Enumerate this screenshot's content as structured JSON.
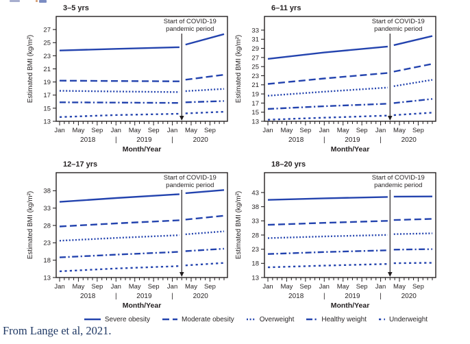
{
  "page": {
    "caption": "From Lange et al, 2021.",
    "caption_color": "#1f3864"
  },
  "colors": {
    "line": "#2343ae",
    "axis": "#231f20",
    "text": "#231f20"
  },
  "legend": {
    "items": [
      {
        "label": "Severe obesity",
        "style": "solid"
      },
      {
        "label": "Moderate obesity",
        "style": "dashed"
      },
      {
        "label": "Overweight",
        "style": "dotted"
      },
      {
        "label": "Healthy weight",
        "style": "dashdot"
      },
      {
        "label": "Underweight",
        "style": "shortdash"
      }
    ]
  },
  "axis_shared": {
    "xlabel": "Month/Year",
    "ylabel": "Estimated BMI (kg/m²)",
    "month_labels": [
      "Jan",
      "May",
      "Sep",
      "Jan",
      "May",
      "Sep",
      "Jan",
      "May",
      "Sep"
    ],
    "years": [
      "2018",
      "2019",
      "2020"
    ],
    "year_separator": "|",
    "annotation": [
      "Start of COVID-19",
      "pandemic period"
    ],
    "annotation_month": 26
  },
  "chart_data": [
    {
      "type": "line",
      "title": "3–5 yrs",
      "ylim": [
        13,
        29
      ],
      "yticks": [
        13,
        15,
        17,
        19,
        21,
        23,
        25,
        27
      ],
      "x_range": "Jan 2018 – Dec 2020, monthly ticks, break at start of COVID-19 pandemic period (early 2020)",
      "series": [
        {
          "name": "Severe obesity",
          "style": "solid",
          "pre": {
            "x": [
              0,
              12,
              25.5
            ],
            "y": [
              23.8,
              24.05,
              24.3
            ]
          },
          "post": {
            "x": [
              26.8,
              35
            ],
            "y": [
              24.7,
              26.3
            ]
          }
        },
        {
          "name": "Moderate obesity",
          "style": "dashed",
          "pre": {
            "x": [
              0,
              12,
              25.5
            ],
            "y": [
              19.2,
              19.15,
              19.1
            ]
          },
          "post": {
            "x": [
              26.8,
              35
            ],
            "y": [
              19.35,
              20.1
            ]
          }
        },
        {
          "name": "Overweight",
          "style": "dotted",
          "pre": {
            "x": [
              0,
              12,
              25.5
            ],
            "y": [
              17.65,
              17.55,
              17.45
            ]
          },
          "post": {
            "x": [
              26.8,
              35
            ],
            "y": [
              17.6,
              17.95
            ]
          }
        },
        {
          "name": "Healthy weight",
          "style": "dashdot",
          "pre": {
            "x": [
              0,
              12,
              25.5
            ],
            "y": [
              15.9,
              15.85,
              15.8
            ]
          },
          "post": {
            "x": [
              26.8,
              35
            ],
            "y": [
              15.9,
              16.1
            ]
          }
        },
        {
          "name": "Underweight",
          "style": "shortdash",
          "pre": {
            "x": [
              0,
              12,
              25.5
            ],
            "y": [
              13.65,
              13.95,
              14.15
            ]
          },
          "post": {
            "x": [
              26.8,
              35
            ],
            "y": [
              14.2,
              14.45
            ]
          }
        }
      ]
    },
    {
      "type": "line",
      "title": "6–11 yrs",
      "ylim": [
        13,
        36
      ],
      "yticks": [
        13,
        15,
        17,
        19,
        21,
        23,
        25,
        27,
        29,
        31,
        33
      ],
      "x_range": "Jan 2018 – Dec 2020, monthly ticks, break at start of COVID-19 pandemic period (early 2020)",
      "series": [
        {
          "name": "Severe obesity",
          "style": "solid",
          "pre": {
            "x": [
              0,
              12,
              25.5
            ],
            "y": [
              26.7,
              28.1,
              29.4
            ]
          },
          "post": {
            "x": [
              26.8,
              35
            ],
            "y": [
              29.7,
              31.7
            ]
          }
        },
        {
          "name": "Moderate obesity",
          "style": "dashed",
          "pre": {
            "x": [
              0,
              12,
              25.5
            ],
            "y": [
              21.2,
              22.4,
              23.6
            ]
          },
          "post": {
            "x": [
              26.8,
              35
            ],
            "y": [
              23.9,
              25.6
            ]
          }
        },
        {
          "name": "Overweight",
          "style": "dotted",
          "pre": {
            "x": [
              0,
              12,
              25.5
            ],
            "y": [
              18.6,
              19.5,
              20.4
            ]
          },
          "post": {
            "x": [
              26.8,
              35
            ],
            "y": [
              20.7,
              22.1
            ]
          }
        },
        {
          "name": "Healthy weight",
          "style": "dashdot",
          "pre": {
            "x": [
              0,
              12,
              25.5
            ],
            "y": [
              15.7,
              16.3,
              16.85
            ]
          },
          "post": {
            "x": [
              26.8,
              35
            ],
            "y": [
              17.0,
              17.9
            ]
          }
        },
        {
          "name": "Underweight",
          "style": "shortdash",
          "pre": {
            "x": [
              0,
              12,
              25.5
            ],
            "y": [
              13.35,
              13.8,
              14.25
            ]
          },
          "post": {
            "x": [
              26.8,
              35
            ],
            "y": [
              14.35,
              14.9
            ]
          }
        }
      ]
    },
    {
      "type": "line",
      "title": "12–17 yrs",
      "ylim": [
        13,
        43.2
      ],
      "yticks": [
        13,
        18,
        23,
        28,
        33,
        38
      ],
      "x_range": "Jan 2018 – Dec 2020, monthly ticks, break at start of COVID-19 pandemic period (early 2020)",
      "series": [
        {
          "name": "Severe obesity",
          "style": "solid",
          "pre": {
            "x": [
              0,
              12,
              25.5
            ],
            "y": [
              34.8,
              35.9,
              37.0
            ]
          },
          "post": {
            "x": [
              26.8,
              35
            ],
            "y": [
              37.3,
              38.2
            ]
          }
        },
        {
          "name": "Moderate obesity",
          "style": "dashed",
          "pre": {
            "x": [
              0,
              12,
              25.5
            ],
            "y": [
              27.7,
              28.6,
              29.5
            ]
          },
          "post": {
            "x": [
              26.8,
              35
            ],
            "y": [
              29.7,
              30.8
            ]
          }
        },
        {
          "name": "Overweight",
          "style": "dotted",
          "pre": {
            "x": [
              0,
              12,
              25.5
            ],
            "y": [
              23.6,
              24.4,
              25.2
            ]
          },
          "post": {
            "x": [
              26.8,
              35
            ],
            "y": [
              25.45,
              26.3
            ]
          }
        },
        {
          "name": "Healthy weight",
          "style": "dashdot",
          "pre": {
            "x": [
              0,
              12,
              25.5
            ],
            "y": [
              18.8,
              19.6,
              20.4
            ]
          },
          "post": {
            "x": [
              26.8,
              35
            ],
            "y": [
              20.6,
              21.3
            ]
          }
        },
        {
          "name": "Underweight",
          "style": "shortdash",
          "pre": {
            "x": [
              0,
              12,
              25.5
            ],
            "y": [
              14.8,
              15.6,
              16.3
            ]
          },
          "post": {
            "x": [
              26.8,
              35
            ],
            "y": [
              16.5,
              17.2
            ]
          }
        }
      ]
    },
    {
      "type": "line",
      "title": "18–20 yrs",
      "ylim": [
        13,
        50
      ],
      "yticks": [
        13,
        18,
        23,
        28,
        33,
        38,
        43
      ],
      "x_range": "Jan 2018 – Dec 2020, monthly ticks, break at start of COVID-19 pandemic period (early 2020)",
      "series": [
        {
          "name": "Severe obesity",
          "style": "solid",
          "pre": {
            "x": [
              0,
              12,
              25.5
            ],
            "y": [
              40.4,
              40.95,
              41.45
            ]
          },
          "post": {
            "x": [
              26.8,
              35
            ],
            "y": [
              41.55,
              41.6
            ]
          }
        },
        {
          "name": "Moderate obesity",
          "style": "dashed",
          "pre": {
            "x": [
              0,
              12,
              25.5
            ],
            "y": [
              31.6,
              32.3,
              33.0
            ]
          },
          "post": {
            "x": [
              26.8,
              35
            ],
            "y": [
              33.3,
              33.7
            ]
          }
        },
        {
          "name": "Overweight",
          "style": "dotted",
          "pre": {
            "x": [
              0,
              12,
              25.5
            ],
            "y": [
              26.9,
              27.5,
              28.05
            ]
          },
          "post": {
            "x": [
              26.8,
              35
            ],
            "y": [
              28.3,
              28.6
            ]
          }
        },
        {
          "name": "Healthy weight",
          "style": "dashdot",
          "pre": {
            "x": [
              0,
              12,
              25.5
            ],
            "y": [
              21.3,
              22.0,
              22.6
            ]
          },
          "post": {
            "x": [
              26.8,
              35
            ],
            "y": [
              22.85,
              23.0
            ]
          }
        },
        {
          "name": "Underweight",
          "style": "shortdash",
          "pre": {
            "x": [
              0,
              12,
              25.5
            ],
            "y": [
              16.6,
              17.2,
              17.8
            ]
          },
          "post": {
            "x": [
              26.8,
              35
            ],
            "y": [
              18.05,
              18.2
            ]
          }
        }
      ]
    }
  ]
}
